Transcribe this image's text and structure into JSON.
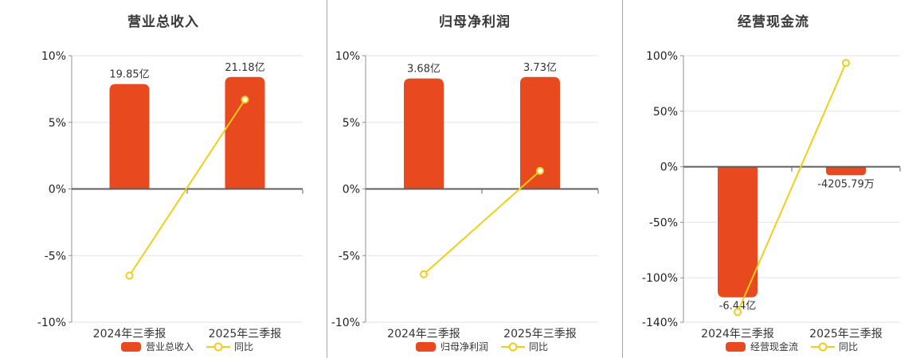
{
  "colors": {
    "bar": "#E8491F",
    "line": "#F3CD16",
    "zero_axis": "#5F5F5F",
    "axis": "#8F8F8F",
    "grid": "#DEE6EF",
    "tick_text": "#1F1F1F",
    "label_text": "#333333"
  },
  "chart_data": [
    {
      "type": "bar+line",
      "title": "营业总收入",
      "categories": [
        "2024年三季报",
        "2025年三季报"
      ],
      "bar_series": {
        "name": "营业总收入",
        "unit": "亿",
        "values": [
          19.85,
          21.18
        ],
        "values_text": [
          "19.85亿",
          "21.18亿"
        ]
      },
      "line_series": {
        "name": "同比",
        "unit": "%",
        "values_pct": [
          -6.5,
          6.7
        ]
      },
      "ylim": [
        -10,
        10
      ],
      "yticks": [
        10,
        5,
        0,
        -5,
        -10
      ],
      "ytick_labels": [
        "10%",
        "5%",
        "0%",
        "-5%",
        "-10%"
      ],
      "grid": true,
      "legend_position": "bottom"
    },
    {
      "type": "bar+line",
      "title": "归母净利润",
      "categories": [
        "2024年三季报",
        "2025年三季报"
      ],
      "bar_series": {
        "name": "归母净利润",
        "unit": "亿",
        "values": [
          3.68,
          3.73
        ],
        "values_text": [
          "3.68亿",
          "3.73亿"
        ]
      },
      "line_series": {
        "name": "同比",
        "unit": "%",
        "values_pct": [
          -6.4,
          1.36
        ]
      },
      "ylim": [
        -10,
        10
      ],
      "yticks": [
        10,
        5,
        0,
        -5,
        -10
      ],
      "ytick_labels": [
        "10%",
        "5%",
        "0%",
        "-5%",
        "-10%"
      ],
      "grid": true,
      "legend_position": "bottom"
    },
    {
      "type": "bar+line",
      "title": "经营现金流",
      "categories": [
        "2024年三季报",
        "2025年三季报"
      ],
      "bar_series": {
        "name": "经营现金流",
        "unit": "亿",
        "values": [
          -6.44,
          -0.420579
        ],
        "values_text": [
          "-6.44亿",
          "-4205.79万"
        ]
      },
      "line_series": {
        "name": "同比",
        "unit": "%",
        "values_pct": [
          -130.9,
          93.5
        ]
      },
      "ylim": [
        -140,
        100
      ],
      "yticks": [
        100,
        50,
        0,
        -50,
        -100,
        -140
      ],
      "ytick_labels": [
        "100%",
        "50%",
        "0%",
        "-50%",
        "-100%",
        "-140%"
      ],
      "grid": true,
      "legend_position": "bottom"
    }
  ]
}
